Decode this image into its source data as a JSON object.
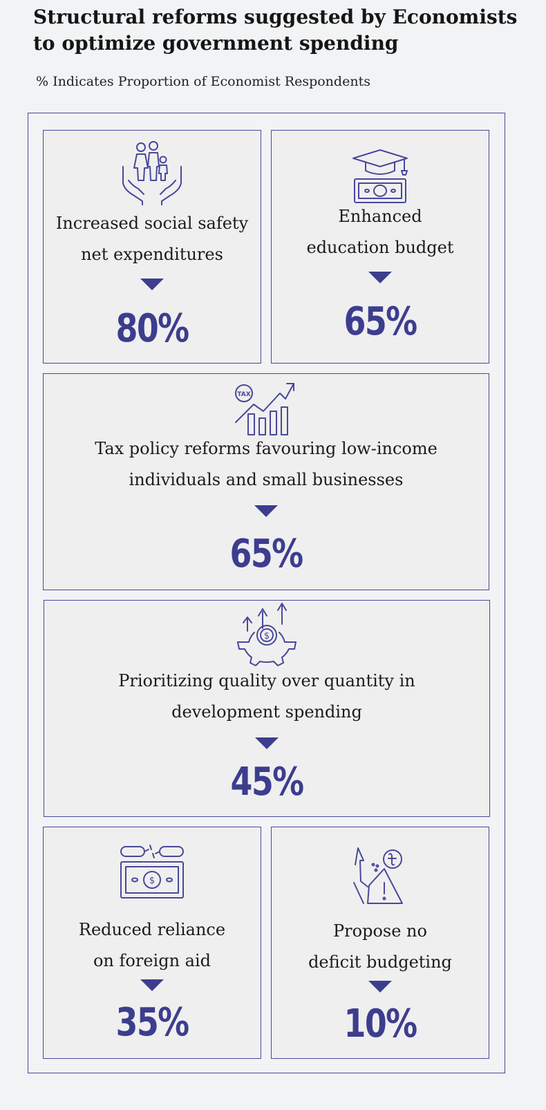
{
  "title": {
    "line1": "Structural reforms suggested by Economists",
    "line2": "to optimize government spending"
  },
  "subtitle": "% Indicates Proportion of Economist Respondents",
  "colors": {
    "accent": "#3d3d8f",
    "border": "#48489a",
    "card_bg": "#efefef",
    "page_bg": "#f1f3f5"
  },
  "cards": [
    {
      "icon": "family-hands-icon",
      "line1": "Increased social safety",
      "line2": "net expenditures",
      "percent": "80%",
      "value": 80
    },
    {
      "icon": "graduation-money-icon",
      "line1": "Enhanced",
      "line2": "education budget",
      "percent": "65%",
      "value": 65
    },
    {
      "icon": "tax-growth-chart-icon",
      "line1": "Tax policy reforms favouring low-income",
      "line2": "individuals and small businesses",
      "percent": "65%",
      "value": 65
    },
    {
      "icon": "gear-dollar-arrows-icon",
      "line1": "Prioritizing quality over quantity in",
      "line2": "development spending",
      "percent": "45%",
      "value": 45
    },
    {
      "icon": "broken-chain-money-icon",
      "line1": "Reduced reliance",
      "line2": "on foreign aid",
      "percent": "35%",
      "value": 35
    },
    {
      "icon": "taka-warning-icon",
      "line1": "Propose no",
      "line2": "deficit budgeting",
      "percent": "10%",
      "value": 10
    }
  ]
}
